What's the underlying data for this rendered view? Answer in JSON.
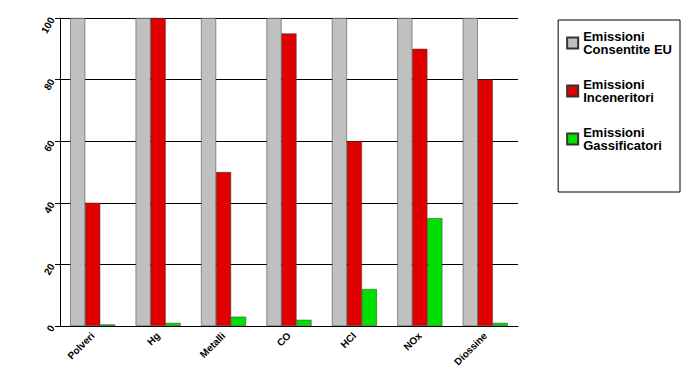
{
  "chart_data": {
    "type": "bar",
    "categories": [
      "Polveri",
      "Hg",
      "Metalli",
      "CO",
      "HCl",
      "NOx",
      "Diossine"
    ],
    "series": [
      {
        "name": "Emissioni Consentite EU",
        "color": "#c0c0c0",
        "values": [
          100,
          100,
          100,
          100,
          100,
          100,
          100
        ]
      },
      {
        "name": "Emissioni Inceneritori",
        "color": "#e00000",
        "values": [
          40,
          100,
          50,
          95,
          60,
          90,
          80
        ]
      },
      {
        "name": "Emissioni Gassificatori",
        "color": "#00e000",
        "values": [
          0.5,
          1,
          3,
          2,
          12,
          35,
          1
        ]
      }
    ],
    "ylim": [
      0,
      100
    ],
    "yticks": [
      0,
      20,
      40,
      60,
      80,
      100
    ],
    "grid": true,
    "legend": "right"
  }
}
